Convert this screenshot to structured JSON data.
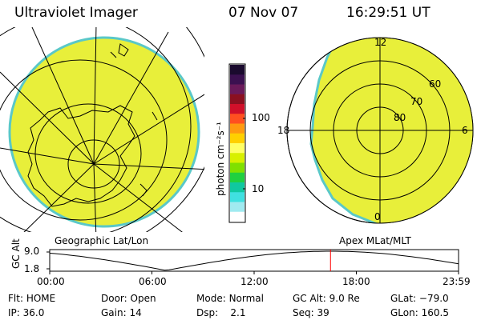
{
  "header": {
    "title": "Ultraviolet Imager",
    "date": "07 Nov 07",
    "time": "16:29:51 UT"
  },
  "left_panel": {
    "label": "Geographic Lat/Lon"
  },
  "right_panel": {
    "label": "Apex MLat/MLT",
    "mlt_labels": [
      "12",
      "18",
      "6",
      "0"
    ],
    "lat_labels": [
      "60",
      "70",
      "80"
    ]
  },
  "colorbar": {
    "unit_label": "photon cm⁻²s⁻¹",
    "tick_labels": [
      "100",
      "10"
    ],
    "scale": "log",
    "colors": [
      "#1a0a2e",
      "#3b1050",
      "#6a1a5a",
      "#8b1020",
      "#d0102a",
      "#ff5020",
      "#ff9a10",
      "#ffd000",
      "#ffff66",
      "#d8f000",
      "#80e000",
      "#20d040",
      "#10c8a0",
      "#40e0e0",
      "#a0eaf0",
      "#ffffff"
    ]
  },
  "timeline": {
    "axis_label": "GC Alt",
    "y_ticks": [
      "9.0",
      "1.8"
    ],
    "x_ticks": [
      "00:00",
      "06:00",
      "12:00",
      "18:00",
      "23:59"
    ],
    "current_time_marker": "16:29"
  },
  "info": [
    {
      "label": "Flt:",
      "value": "HOME"
    },
    {
      "label": "IP:",
      "value": "36.0"
    },
    {
      "label": "Door:",
      "value": "Open"
    },
    {
      "label": "Gain:",
      "value": "14"
    },
    {
      "label": "Mode:",
      "value": "Normal"
    },
    {
      "label": "Dsp:",
      "value": "2.1"
    },
    {
      "label": "GC Alt:",
      "value": "9.0 Re"
    },
    {
      "label": "Seq:",
      "value": "39"
    },
    {
      "label": "GLat:",
      "value": "−79.0"
    },
    {
      "label": "GLon:",
      "value": "160.5"
    }
  ],
  "colors": {
    "aurora_fill": "#e8ef3a",
    "aurora_edge": "#5ac8c8",
    "marker": "#ff0000"
  }
}
